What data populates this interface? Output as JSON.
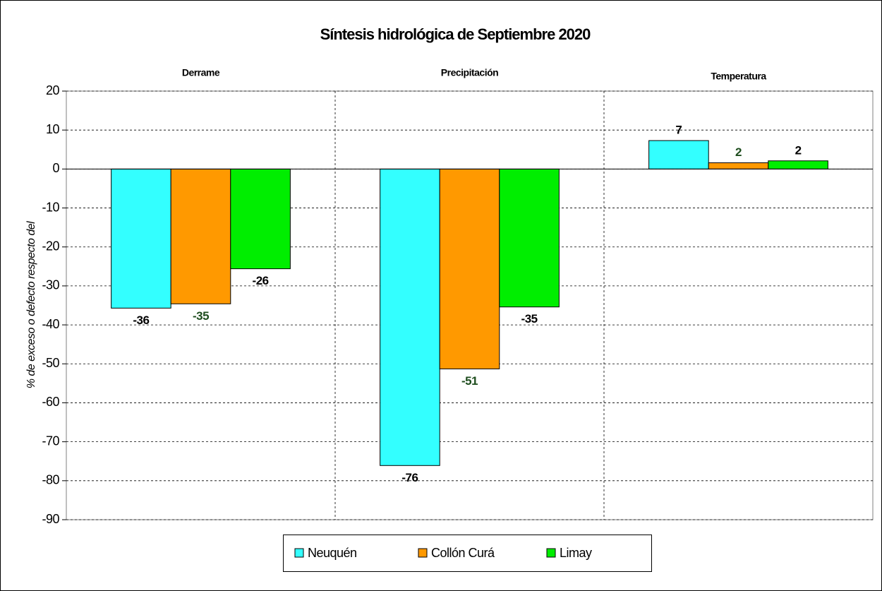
{
  "chart_data": {
    "type": "bar",
    "title": "Síntesis hidrológica de Septiembre 2020",
    "y_label": "% de exceso o defecto respecto del",
    "categories": [
      "Derrame",
      "Precipitación",
      "Temperatura"
    ],
    "series": [
      {
        "name": "Neuquén",
        "color": "#33ffff",
        "label_color": "#000000",
        "values": [
          -35.7,
          -76.1,
          7.3
        ],
        "value_labels": [
          "-36",
          "-76",
          "7"
        ]
      },
      {
        "name": "Collón Curá",
        "color": "#ff9900",
        "label_color": "#1e4d1e",
        "values": [
          -34.6,
          -51.3,
          1.6
        ],
        "value_labels": [
          "-35",
          "-51",
          "2"
        ]
      },
      {
        "name": "Limay",
        "color": "#00ee00",
        "label_color": "#000000",
        "values": [
          -25.6,
          -35.4,
          2.1
        ],
        "value_labels": [
          "-26",
          "-35",
          "2"
        ]
      }
    ],
    "ylim": [
      -90,
      20
    ],
    "yticks": [
      -90,
      -80,
      -70,
      -60,
      -50,
      -40,
      -30,
      -20,
      -10,
      0,
      10,
      20
    ],
    "grid": true
  }
}
